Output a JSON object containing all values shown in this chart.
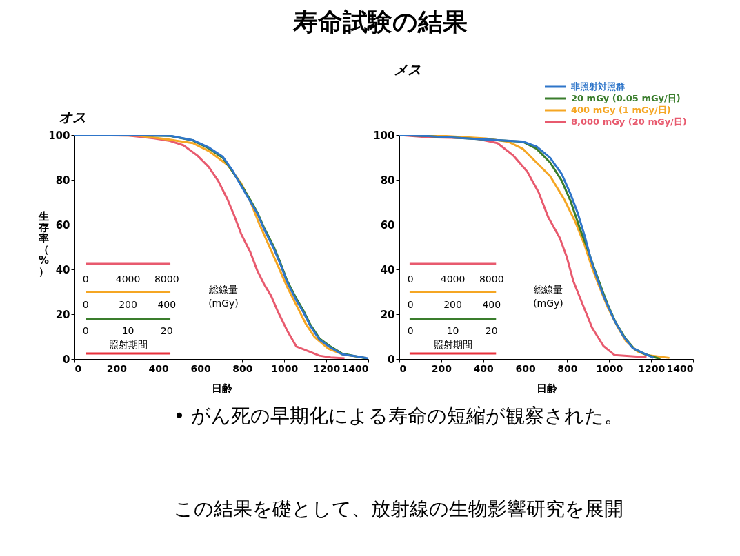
{
  "chart_data": [
    {
      "type": "line",
      "title": "寿命試験の結果",
      "subtitle": "オス",
      "xlabel": "日齢",
      "ylabel": "生存率（%）",
      "xlim": [
        0,
        1400
      ],
      "xticks": [
        0,
        200,
        400,
        600,
        800,
        1000,
        1200,
        1400
      ],
      "ylim": [
        0,
        100
      ],
      "yticks": [
        0,
        20,
        40,
        60,
        80,
        100
      ],
      "grid": false,
      "legend": false,
      "series": [
        {
          "color": "#e85a6e",
          "x": [
            0,
            257,
            378,
            455,
            520,
            586,
            641,
            685,
            729,
            761,
            794,
            838,
            871,
            904,
            937,
            970,
            1013,
            1057,
            1112,
            1167,
            1221,
            1287
          ],
          "values": [
            100,
            99.8,
            98.5,
            97.4,
            95.4,
            90.8,
            85.6,
            79.5,
            71.3,
            64.1,
            55.9,
            47.7,
            39.5,
            33.3,
            28.2,
            21,
            12.8,
            5.6,
            3.6,
            1.5,
            0.7,
            0.3
          ]
        },
        {
          "color": "#f5a623",
          "x": [
            0,
            300,
            455,
            564,
            641,
            729,
            794,
            838,
            882,
            926,
            970,
            1013,
            1057,
            1101,
            1145,
            1210,
            1276,
            1386
          ],
          "values": [
            100,
            99.8,
            97.9,
            96.4,
            92.8,
            86.7,
            78.5,
            70.3,
            60,
            50.8,
            41.5,
            32.3,
            24.1,
            15.9,
            9.7,
            4.6,
            2.1,
            0.5
          ]
        },
        {
          "color": "#3a7d2c",
          "x": [
            0,
            290,
            455,
            564,
            641,
            707,
            750,
            794,
            838,
            871,
            904,
            948,
            980,
            1013,
            1057,
            1090,
            1123,
            1167,
            1221,
            1276,
            1342,
            1390
          ],
          "values": [
            100,
            99.9,
            99.6,
            97.6,
            94,
            89.8,
            84.2,
            77.8,
            71,
            65.5,
            58.5,
            50.5,
            43.2,
            35,
            27,
            21.8,
            15.5,
            9.2,
            5.5,
            2.4,
            1.2,
            0.3
          ]
        },
        {
          "color": "#2e75c9",
          "x": [
            0,
            257,
            455,
            564,
            641,
            707,
            750,
            794,
            838,
            871,
            904,
            948,
            980,
            1013,
            1057,
            1090,
            1123,
            1167,
            1221,
            1276,
            1342,
            1397
          ],
          "values": [
            100,
            99.9,
            99.7,
            97.7,
            94.4,
            90.3,
            84.6,
            77.4,
            70.3,
            65.1,
            57.9,
            49.7,
            42.6,
            34.4,
            26.2,
            21,
            14.9,
            8.7,
            5.1,
            2.1,
            1.2,
            0.3
          ]
        },
        {
          "color": "#e85a6e",
          "x": [
            53,
            457
          ],
          "values": [
            42.5,
            42.5
          ]
        },
        {
          "color": "#f5a623",
          "x": [
            53,
            457
          ],
          "values": [
            30,
            30
          ]
        },
        {
          "color": "#3a7d2c",
          "x": [
            53,
            457
          ],
          "values": [
            18,
            18
          ]
        },
        {
          "color": "#e8323c",
          "x": [
            53,
            457
          ],
          "values": [
            2.5,
            2.5
          ]
        }
      ],
      "annotations": [
        "0",
        "4000",
        "8000",
        "0",
        "200",
        "400",
        "0",
        "10",
        "20",
        "照射期間",
        "総線量",
        "(mGy)"
      ]
    },
    {
      "type": "line",
      "subtitle": "メス",
      "xlabel": "日齢",
      "xlim": [
        0,
        1400
      ],
      "xticks": [
        0,
        200,
        400,
        600,
        800,
        1000,
        1200,
        1400
      ],
      "ylim": [
        0,
        100
      ],
      "yticks": [
        0,
        20,
        40,
        60,
        80,
        100
      ],
      "grid": false,
      "legend": "top right",
      "series": [
        {
          "name": "8,000 mGy (20 mGy/日)",
          "color": "#e85a6e",
          "x": [
            0,
            140,
            360,
            468,
            544,
            610,
            664,
            710,
            765,
            797,
            830,
            874,
            918,
            972,
            1025,
            1178
          ],
          "values": [
            100,
            99,
            98.5,
            96.4,
            90.8,
            83.6,
            74.4,
            63.2,
            54,
            45.8,
            34.6,
            24.3,
            14.1,
            5.9,
            1.8,
            0.8
          ]
        },
        {
          "name": "400 mGy (1 mGy/日)",
          "color": "#f5a623",
          "x": [
            0,
            140,
            413,
            522,
            588,
            654,
            719,
            785,
            839,
            883,
            915,
            948,
            992,
            1036,
            1080,
            1134,
            1178,
            1287
          ],
          "values": [
            100,
            100,
            98.5,
            96.9,
            93.9,
            87.7,
            81.6,
            71.4,
            61.1,
            50.9,
            41.7,
            33.5,
            23.3,
            15.1,
            8,
            3.4,
            1.8,
            0.5
          ]
        },
        {
          "name": "20 mGy (0.05 mGy/日)",
          "color": "#3a7d2c",
          "x": [
            0,
            140,
            413,
            588,
            654,
            719,
            774,
            817,
            861,
            894,
            925,
            958,
            990,
            1030,
            1075,
            1120,
            1170,
            1244
          ],
          "values": [
            100,
            99.5,
            98,
            97,
            93.9,
            87.7,
            79.6,
            70.3,
            58.1,
            49.9,
            41.5,
            33,
            25,
            16.5,
            9.5,
            4.5,
            2.2,
            0
          ]
        },
        {
          "name": "非照射対照群",
          "color": "#2e75c9",
          "x": [
            0,
            140,
            413,
            588,
            654,
            719,
            774,
            817,
            850,
            883,
            915,
            948,
            981,
            1025,
            1069,
            1112,
            1156,
            1211
          ],
          "values": [
            100,
            99.5,
            98,
            97.1,
            94.9,
            89.8,
            82.6,
            73.4,
            65.2,
            55,
            43.8,
            34.6,
            26.4,
            17.2,
            10,
            4.9,
            2.9,
            0.6
          ]
        },
        {
          "color": "#e85a6e",
          "x": [
            49,
            461
          ],
          "values": [
            42.5,
            42.5
          ]
        },
        {
          "color": "#f5a623",
          "x": [
            49,
            461
          ],
          "values": [
            30,
            30
          ]
        },
        {
          "color": "#3a7d2c",
          "x": [
            49,
            461
          ],
          "values": [
            18,
            18
          ]
        },
        {
          "color": "#e8323c",
          "x": [
            49,
            461
          ],
          "values": [
            2.5,
            2.5
          ]
        }
      ],
      "annotations": [
        "0",
        "4000",
        "8000",
        "0",
        "200",
        "400",
        "0",
        "10",
        "20",
        "照射期間",
        "総線量",
        "(mGy)",
        "• がん死の早期化による寿命の短縮が観察された。",
        "この結果を礎として、放射線の生物影響研究を展開"
      ]
    }
  ]
}
